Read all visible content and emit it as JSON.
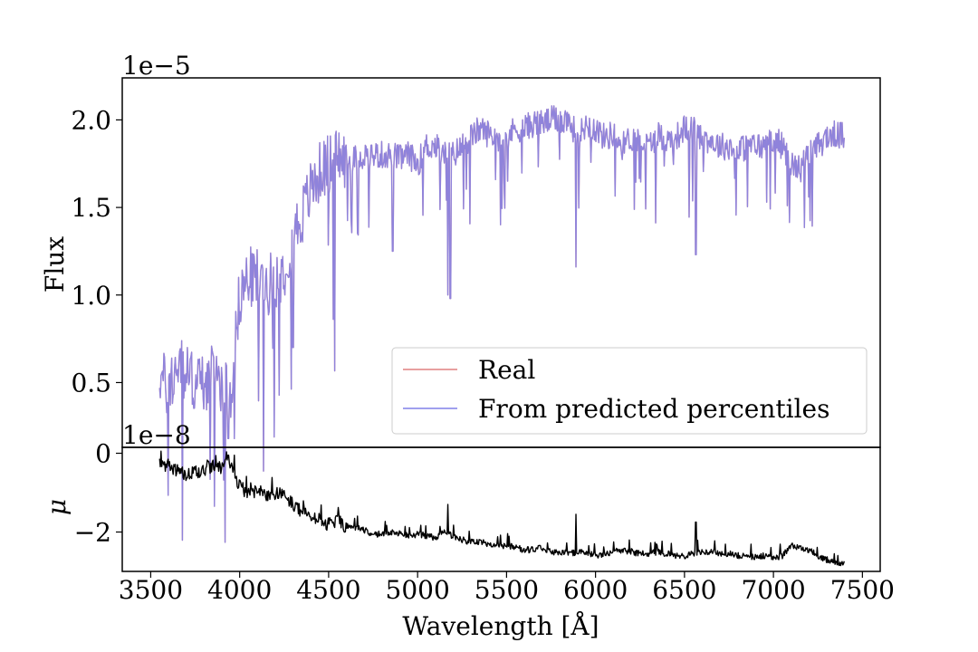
{
  "chart_data": [
    {
      "type": "line",
      "panel": "top",
      "ylabel": "Flux",
      "offset_text": "1e−5",
      "ylim": [
        0.13,
        2.24
      ],
      "xlim": [
        3340,
        7600
      ],
      "yticks": [
        {
          "value": 0.5,
          "label": "0.5"
        },
        {
          "value": 1.0,
          "label": "1.0"
        },
        {
          "value": 1.5,
          "label": "1.5"
        },
        {
          "value": 2.0,
          "label": "2.0"
        }
      ],
      "x_tick_labels_shown": false,
      "series": [
        {
          "name": "Real",
          "color": "#e08080",
          "x": [
            3550,
            3600,
            3650,
            3700,
            3750,
            3800,
            3850,
            3900,
            3950,
            4000,
            4050,
            4100,
            4150,
            4200,
            4250,
            4300,
            4350,
            4400,
            4450,
            4500,
            4550,
            4600,
            4650,
            4700,
            4750,
            4800,
            4850,
            4900,
            4950,
            5000,
            5050,
            5100,
            5150,
            5200,
            5250,
            5300,
            5350,
            5400,
            5450,
            5500,
            5550,
            5600,
            5650,
            5700,
            5750,
            5800,
            5850,
            5900,
            5950,
            6000,
            6050,
            6100,
            6150,
            6200,
            6250,
            6300,
            6350,
            6400,
            6450,
            6500,
            6550,
            6600,
            6650,
            6700,
            6750,
            6800,
            6850,
            6900,
            6950,
            7000,
            7050,
            7100,
            7150,
            7200,
            7250,
            7300,
            7350,
            7400
          ],
          "values": [
            0.55,
            0.45,
            0.6,
            0.55,
            0.5,
            0.5,
            0.55,
            0.5,
            0.45,
            1.0,
            1.1,
            1.1,
            1.05,
            1.1,
            1.15,
            1.35,
            1.45,
            1.6,
            1.7,
            1.75,
            1.8,
            1.75,
            1.78,
            1.8,
            1.8,
            1.8,
            1.8,
            1.78,
            1.8,
            1.75,
            1.85,
            1.85,
            1.8,
            1.8,
            1.85,
            1.9,
            1.95,
            1.92,
            1.9,
            1.9,
            1.95,
            1.95,
            1.98,
            1.98,
            2.0,
            2.0,
            2.0,
            1.9,
            1.98,
            1.95,
            1.9,
            1.92,
            1.85,
            1.9,
            1.88,
            1.85,
            1.92,
            1.88,
            1.9,
            1.95,
            1.95,
            1.9,
            1.88,
            1.85,
            1.85,
            1.82,
            1.85,
            1.85,
            1.85,
            1.9,
            1.85,
            1.75,
            1.72,
            1.8,
            1.85,
            1.9,
            1.92,
            1.9
          ]
        },
        {
          "name": "From predicted percentiles",
          "color": "#8080e8",
          "x": [
            3550,
            3600,
            3650,
            3700,
            3750,
            3800,
            3850,
            3900,
            3950,
            4000,
            4050,
            4100,
            4150,
            4200,
            4250,
            4300,
            4350,
            4400,
            4450,
            4500,
            4550,
            4600,
            4650,
            4700,
            4750,
            4800,
            4850,
            4900,
            4950,
            5000,
            5050,
            5100,
            5150,
            5200,
            5250,
            5300,
            5350,
            5400,
            5450,
            5500,
            5550,
            5600,
            5650,
            5700,
            5750,
            5800,
            5850,
            5900,
            5950,
            6000,
            6050,
            6100,
            6150,
            6200,
            6250,
            6300,
            6350,
            6400,
            6450,
            6500,
            6550,
            6600,
            6650,
            6700,
            6750,
            6800,
            6850,
            6900,
            6950,
            7000,
            7050,
            7100,
            7150,
            7200,
            7250,
            7300,
            7350,
            7400
          ],
          "values": [
            0.55,
            0.45,
            0.6,
            0.55,
            0.5,
            0.5,
            0.55,
            0.5,
            0.45,
            1.0,
            1.1,
            1.1,
            1.05,
            1.1,
            1.15,
            1.35,
            1.45,
            1.6,
            1.7,
            1.75,
            1.8,
            1.75,
            1.78,
            1.8,
            1.8,
            1.8,
            1.8,
            1.78,
            1.8,
            1.75,
            1.85,
            1.85,
            1.8,
            1.8,
            1.85,
            1.9,
            1.95,
            1.92,
            1.9,
            1.9,
            1.95,
            1.95,
            1.98,
            1.98,
            2.0,
            2.0,
            2.0,
            1.9,
            1.98,
            1.95,
            1.9,
            1.92,
            1.85,
            1.9,
            1.88,
            1.85,
            1.92,
            1.88,
            1.9,
            1.95,
            1.95,
            1.9,
            1.88,
            1.85,
            1.85,
            1.82,
            1.85,
            1.85,
            1.85,
            1.9,
            1.85,
            1.75,
            1.72,
            1.8,
            1.85,
            1.9,
            1.92,
            1.9
          ]
        }
      ],
      "absorption_lines": [
        {
          "x": 3935,
          "depth_to": 0.18
        },
        {
          "x": 3970,
          "depth_to": 0.18
        },
        {
          "x": 4300,
          "depth_to": 0.7
        },
        {
          "x": 4860,
          "depth_to": 1.25
        },
        {
          "x": 5170,
          "depth_to": 1.0
        },
        {
          "x": 5185,
          "depth_to": 0.98
        },
        {
          "x": 5890,
          "depth_to": 1.16
        },
        {
          "x": 6563,
          "depth_to": 1.23
        }
      ],
      "legend": {
        "position": "lower right",
        "entries": [
          "Real",
          "From predicted percentiles"
        ]
      }
    },
    {
      "type": "line",
      "panel": "bottom",
      "ylabel": "μ",
      "offset_text": "1e−8",
      "xlabel": "Wavelength [Å]",
      "ylim": [
        -3.0,
        0.15
      ],
      "xlim": [
        3340,
        7600
      ],
      "xticks": [
        {
          "value": 3500,
          "label": "3500"
        },
        {
          "value": 4000,
          "label": "4000"
        },
        {
          "value": 4500,
          "label": "4500"
        },
        {
          "value": 5000,
          "label": "5000"
        },
        {
          "value": 5500,
          "label": "5500"
        },
        {
          "value": 6000,
          "label": "6000"
        },
        {
          "value": 6500,
          "label": "6500"
        },
        {
          "value": 7000,
          "label": "7000"
        },
        {
          "value": 7500,
          "label": "7500"
        }
      ],
      "yticks": [
        {
          "value": 0,
          "label": "0"
        },
        {
          "value": -2,
          "label": "−2"
        }
      ],
      "series": [
        {
          "name": "",
          "color": "#000000",
          "x": [
            3550,
            3600,
            3650,
            3700,
            3750,
            3800,
            3850,
            3900,
            3950,
            4000,
            4050,
            4100,
            4150,
            4200,
            4250,
            4300,
            4350,
            4400,
            4450,
            4500,
            4550,
            4600,
            4650,
            4700,
            4750,
            4800,
            4850,
            4900,
            4950,
            5000,
            5050,
            5100,
            5150,
            5200,
            5250,
            5300,
            5350,
            5400,
            5450,
            5500,
            5550,
            5600,
            5650,
            5700,
            5750,
            5800,
            5850,
            5900,
            5950,
            6000,
            6050,
            6100,
            6150,
            6200,
            6250,
            6300,
            6350,
            6400,
            6450,
            6500,
            6550,
            6600,
            6650,
            6700,
            6750,
            6800,
            6850,
            6900,
            6950,
            7000,
            7050,
            7100,
            7150,
            7200,
            7250,
            7300,
            7350,
            7400
          ],
          "values": [
            -0.25,
            -0.3,
            -0.45,
            -0.55,
            -0.5,
            -0.4,
            -0.3,
            -0.35,
            -0.2,
            -0.85,
            -1.0,
            -0.95,
            -1.05,
            -1.0,
            -1.1,
            -1.3,
            -1.5,
            -1.6,
            -1.7,
            -1.8,
            -1.75,
            -1.85,
            -1.9,
            -1.95,
            -2.05,
            -2.05,
            -2.0,
            -2.05,
            -2.1,
            -2.05,
            -2.1,
            -2.15,
            -2.0,
            -2.1,
            -2.2,
            -2.25,
            -2.25,
            -2.3,
            -2.35,
            -2.35,
            -2.4,
            -2.45,
            -2.45,
            -2.4,
            -2.5,
            -2.5,
            -2.55,
            -2.5,
            -2.55,
            -2.6,
            -2.55,
            -2.5,
            -2.45,
            -2.5,
            -2.55,
            -2.55,
            -2.5,
            -2.55,
            -2.6,
            -2.6,
            -2.55,
            -2.5,
            -2.5,
            -2.55,
            -2.55,
            -2.6,
            -2.6,
            -2.65,
            -2.6,
            -2.65,
            -2.6,
            -2.35,
            -2.4,
            -2.45,
            -2.6,
            -2.7,
            -2.75,
            -2.8
          ]
        }
      ],
      "emission_lines": [
        {
          "x": 3935,
          "peak_to": -0.05
        },
        {
          "x": 3970,
          "peak_to": -0.05
        },
        {
          "x": 5170,
          "peak_to": -1.3
        },
        {
          "x": 5890,
          "peak_to": -1.55
        },
        {
          "x": 6563,
          "peak_to": -1.75
        }
      ]
    }
  ]
}
